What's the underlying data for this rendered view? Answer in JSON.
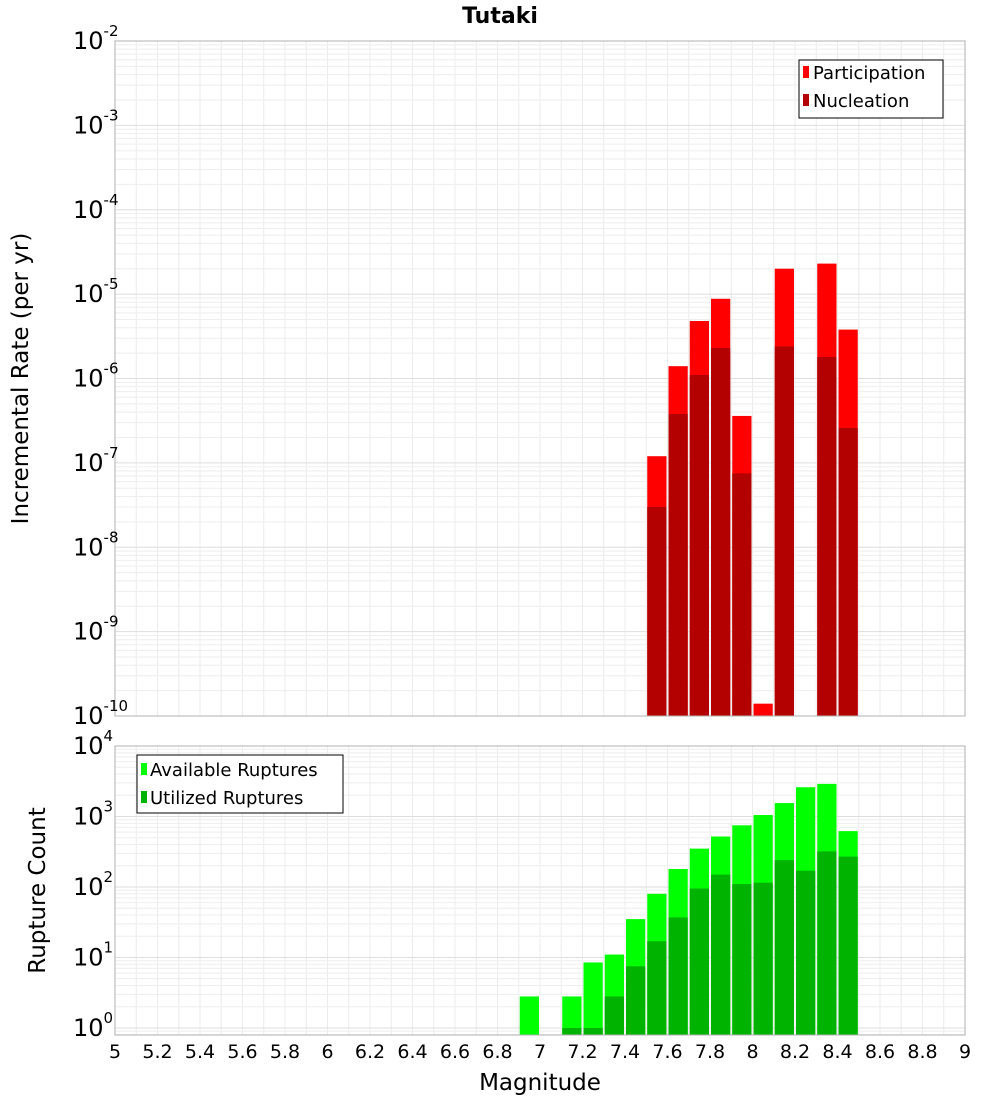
{
  "chart_data": {
    "type": "bar",
    "title": "Tutaki",
    "xlabel": "Magnitude",
    "xlim": [
      5,
      9
    ],
    "xticks": [
      "5",
      "5.2",
      "5.4",
      "5.6",
      "5.8",
      "6",
      "6.2",
      "6.4",
      "6.6",
      "6.8",
      "7",
      "7.2",
      "7.4",
      "7.6",
      "7.8",
      "8",
      "8.2",
      "8.4",
      "8.6",
      "8.8",
      "9"
    ],
    "bin_width": 0.1,
    "panels": [
      {
        "id": "rate",
        "ylabel": "Incremental Rate (per yr)",
        "yscale": "log",
        "ylim_exp": [
          -10,
          -2
        ],
        "yticks": [
          {
            "base": "10",
            "exp": "-2"
          },
          {
            "base": "10",
            "exp": "-3"
          },
          {
            "base": "10",
            "exp": "-4"
          },
          {
            "base": "10",
            "exp": "-5"
          },
          {
            "base": "10",
            "exp": "-6"
          },
          {
            "base": "10",
            "exp": "-7"
          },
          {
            "base": "10",
            "exp": "-8"
          },
          {
            "base": "10",
            "exp": "-9"
          },
          {
            "base": "10",
            "exp": "-10"
          }
        ],
        "legend_position": "top-right",
        "series": [
          {
            "name": "Participation",
            "color": "#ff0000",
            "x": [
              7.55,
              7.65,
              7.75,
              7.85,
              7.95,
              8.05,
              8.15,
              8.35,
              8.45
            ],
            "values": [
              1.2e-07,
              1.4e-06,
              4.8e-06,
              8.8e-06,
              3.6e-07,
              1.4e-10,
              2e-05,
              2.3e-05,
              3.8e-06
            ]
          },
          {
            "name": "Nucleation",
            "color": "#b30000",
            "x": [
              7.55,
              7.65,
              7.75,
              7.85,
              7.95,
              8.15,
              8.35,
              8.45
            ],
            "values": [
              3e-08,
              3.8e-07,
              1.1e-06,
              2.3e-06,
              7.5e-08,
              2.4e-06,
              1.8e-06,
              2.6e-07
            ]
          }
        ]
      },
      {
        "id": "count",
        "ylabel": "Rupture Count",
        "yscale": "log",
        "ylim_exp": [
          -0.1,
          4
        ],
        "yticks": [
          {
            "base": "10",
            "exp": "4"
          },
          {
            "base": "10",
            "exp": "3"
          },
          {
            "base": "10",
            "exp": "2"
          },
          {
            "base": "10",
            "exp": "1"
          },
          {
            "base": "10",
            "exp": "0"
          }
        ],
        "legend_position": "top-left",
        "series": [
          {
            "name": "Available Ruptures",
            "color": "#00ff00",
            "x": [
              6.95,
              7.15,
              7.25,
              7.35,
              7.45,
              7.55,
              7.65,
              7.75,
              7.85,
              7.95,
              8.05,
              8.15,
              8.25,
              8.35,
              8.45
            ],
            "values": [
              2.8,
              2.8,
              8.5,
              11,
              35,
              80,
              180,
              350,
              520,
              750,
              1050,
              1550,
              2600,
              2900,
              620
            ]
          },
          {
            "name": "Utilized Ruptures",
            "color": "#00b300",
            "x": [
              7.15,
              7.25,
              7.35,
              7.45,
              7.55,
              7.65,
              7.75,
              7.85,
              7.95,
              8.05,
              8.15,
              8.25,
              8.35,
              8.45
            ],
            "values": [
              1,
              1,
              2.8,
              7.5,
              17,
              37,
              95,
              150,
              110,
              115,
              240,
              170,
              320,
              270
            ]
          }
        ]
      }
    ]
  }
}
